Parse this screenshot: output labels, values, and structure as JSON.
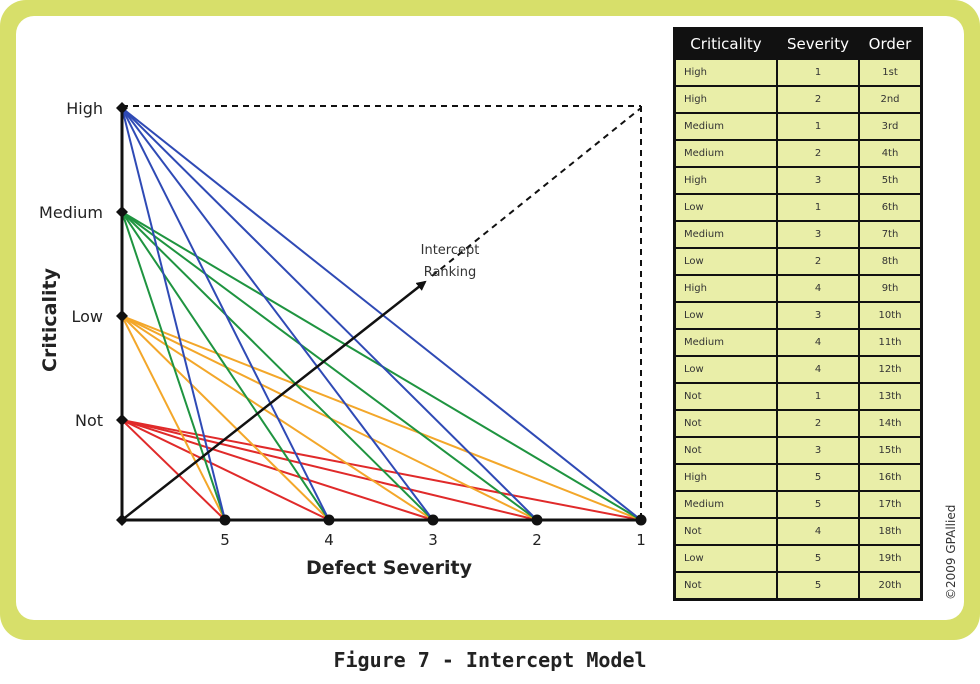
{
  "figure": {
    "caption": "Figure 7 - Intercept Model",
    "copyright": "©2009 GPAllied"
  },
  "diagram": {
    "y_axis_label": "Criticality",
    "x_axis_label": "Defect Severity",
    "arrow_label_line1": "Intercept",
    "arrow_label_line2": "Ranking",
    "criticality_levels": [
      "High",
      "Medium",
      "Low",
      "Not"
    ],
    "severity_levels": [
      "5",
      "4",
      "3",
      "2",
      "1"
    ],
    "line_colors": {
      "High": "#2f4ab5",
      "Medium": "#1f9440",
      "Low": "#f3a72a",
      "Not": "#e02a2a"
    }
  },
  "table": {
    "headers": [
      "Criticality",
      "Severity",
      "Order"
    ],
    "rows": [
      [
        "High",
        "1",
        "1st"
      ],
      [
        "High",
        "2",
        "2nd"
      ],
      [
        "Medium",
        "1",
        "3rd"
      ],
      [
        "Medium",
        "2",
        "4th"
      ],
      [
        "High",
        "3",
        "5th"
      ],
      [
        "Low",
        "1",
        "6th"
      ],
      [
        "Medium",
        "3",
        "7th"
      ],
      [
        "Low",
        "2",
        "8th"
      ],
      [
        "High",
        "4",
        "9th"
      ],
      [
        "Low",
        "3",
        "10th"
      ],
      [
        "Medium",
        "4",
        "11th"
      ],
      [
        "Low",
        "4",
        "12th"
      ],
      [
        "Not",
        "1",
        "13th"
      ],
      [
        "Not",
        "2",
        "14th"
      ],
      [
        "Not",
        "3",
        "15th"
      ],
      [
        "High",
        "5",
        "16th"
      ],
      [
        "Medium",
        "5",
        "17th"
      ],
      [
        "Not",
        "4",
        "18th"
      ],
      [
        "Low",
        "5",
        "19th"
      ],
      [
        "Not",
        "5",
        "20th"
      ]
    ]
  }
}
